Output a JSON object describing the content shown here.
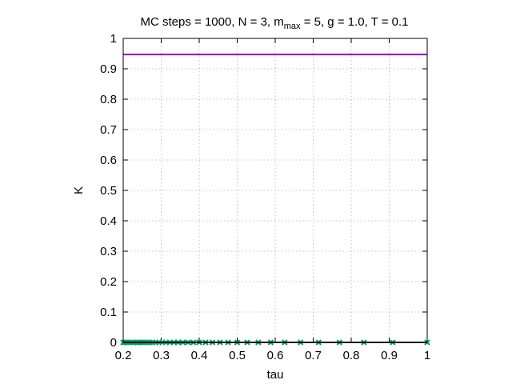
{
  "chart_data": {
    "type": "line",
    "title": {
      "before_sub": "MC steps = 1000, N = 3, m",
      "sub": "max",
      "after_sub": " = 5, g = 1.0, T = 0.1"
    },
    "xlabel": "tau",
    "ylabel": "K",
    "xlim": [
      0.2,
      1.0
    ],
    "ylim": [
      0,
      1.0
    ],
    "xticks": [
      0.2,
      0.3,
      0.4,
      0.5,
      0.6,
      0.7,
      0.8,
      0.9,
      1.0
    ],
    "xtick_labels": [
      "0.2",
      "0.3",
      "0.4",
      "0.5",
      "0.6",
      "0.7",
      "0.8",
      "0.9",
      "1"
    ],
    "yticks": [
      0,
      0.1,
      0.2,
      0.3,
      0.4,
      0.5,
      0.6,
      0.7,
      0.8,
      0.9,
      1.0
    ],
    "ytick_labels": [
      "0",
      "0.1",
      "0.2",
      "0.3",
      "0.4",
      "0.5",
      "0.6",
      "0.7",
      "0.8",
      "0.9",
      "1"
    ],
    "grid": true,
    "series": [
      {
        "style": "line",
        "color": "#9400d3",
        "x": [
          0.2,
          1.0
        ],
        "y": [
          0.947,
          0.947
        ]
      },
      {
        "style": "points",
        "marker": "x",
        "color": "#009e73",
        "x": [
          0.2,
          0.2041,
          0.2083,
          0.2128,
          0.2174,
          0.2222,
          0.2273,
          0.2326,
          0.2381,
          0.2439,
          0.25,
          0.2564,
          0.2632,
          0.2703,
          0.2778,
          0.2857,
          0.2941,
          0.303,
          0.3125,
          0.3226,
          0.3333,
          0.3448,
          0.3571,
          0.3704,
          0.3846,
          0.4,
          0.4167,
          0.4348,
          0.4545,
          0.4762,
          0.5,
          0.5263,
          0.5556,
          0.5882,
          0.625,
          0.6667,
          0.7143,
          0.7692,
          0.8333,
          0.9091,
          1.0
        ],
        "y": [
          0,
          0,
          0,
          0,
          0,
          0,
          0,
          0,
          0,
          0,
          0,
          0,
          0,
          0,
          0,
          0,
          0,
          0,
          0,
          0,
          0,
          0,
          0,
          0,
          0,
          0,
          0,
          0,
          0,
          0,
          0,
          0,
          0,
          0,
          0,
          0,
          0,
          0,
          0,
          0,
          0
        ]
      },
      {
        "style": "line",
        "color": "#000000",
        "x": [
          0.2,
          1.0
        ],
        "y": [
          0,
          0
        ]
      }
    ]
  }
}
